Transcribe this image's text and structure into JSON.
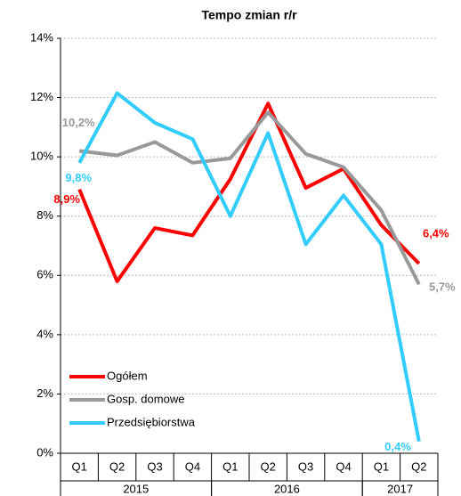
{
  "chart_data": {
    "type": "line",
    "title": "Tempo zmian r/r",
    "categories": [
      "Q1",
      "Q2",
      "Q3",
      "Q4",
      "Q1",
      "Q2",
      "Q3",
      "Q4",
      "Q1",
      "Q2"
    ],
    "x_groups": [
      {
        "label": "2015",
        "span": 4
      },
      {
        "label": "2016",
        "span": 4
      },
      {
        "label": "2017",
        "span": 2
      }
    ],
    "series": [
      {
        "name": "Ogółem",
        "color": "#ff0000",
        "values": [
          8.9,
          5.8,
          7.6,
          7.35,
          9.25,
          11.8,
          8.95,
          9.6,
          7.7,
          6.4
        ],
        "value_labels": [
          "8,9%",
          null,
          null,
          null,
          null,
          null,
          null,
          null,
          null,
          "6,4%"
        ]
      },
      {
        "name": "Gosp. domowe",
        "color": "#999999",
        "values": [
          10.2,
          10.05,
          10.5,
          9.8,
          9.95,
          11.5,
          10.1,
          9.65,
          8.2,
          5.7
        ],
        "value_labels": [
          "10,2%",
          null,
          null,
          null,
          null,
          null,
          null,
          null,
          null,
          "5,7%"
        ]
      },
      {
        "name": "Przedsiębiorstwa",
        "color": "#33ccff",
        "values": [
          9.8,
          12.15,
          11.15,
          10.6,
          8.0,
          10.8,
          7.05,
          8.7,
          7.05,
          0.4
        ],
        "value_labels": [
          "9,8%",
          null,
          null,
          null,
          null,
          null,
          null,
          null,
          null,
          "0,4%"
        ]
      }
    ],
    "ylim": [
      0,
      14
    ],
    "yticks": [
      {
        "value": 0,
        "label": "0%"
      },
      {
        "value": 2,
        "label": "2%"
      },
      {
        "value": 4,
        "label": "4%"
      },
      {
        "value": 6,
        "label": "6%"
      },
      {
        "value": 8,
        "label": "8%"
      },
      {
        "value": 10,
        "label": "10%"
      },
      {
        "value": 12,
        "label": "12%"
      },
      {
        "value": 14,
        "label": "14%"
      }
    ],
    "grid": true,
    "legend": "lower left"
  }
}
